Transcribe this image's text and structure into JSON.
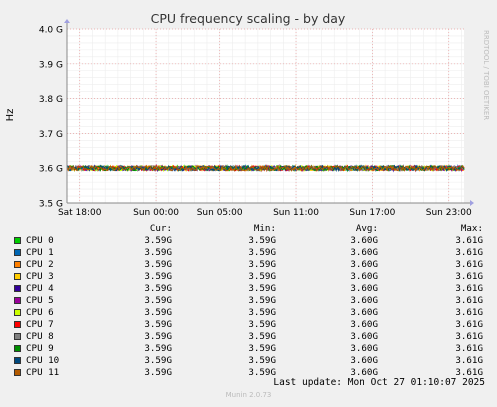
{
  "chart_data": {
    "type": "line",
    "title": "CPU frequency scaling - by day",
    "ylabel": "Hz",
    "side_label": "RRDTOOL / TOBI OETIKER",
    "y_ticks": [
      "3.5 G",
      "3.6 G",
      "3.7 G",
      "3.8 G",
      "3.9 G",
      "4.0 G"
    ],
    "y_tick_values": [
      3.5,
      3.6,
      3.7,
      3.8,
      3.9,
      4.0
    ],
    "ylim": [
      3.5,
      4.0
    ],
    "x_ticks": [
      "Sat 18:00",
      "Sun 00:00",
      "Sun 05:00",
      "Sun 11:00",
      "Sun 17:00",
      "Sun 23:00"
    ],
    "x_tick_hours": [
      1,
      7,
      12,
      18,
      24,
      30
    ],
    "xlim_hours": [
      0,
      31.2
    ],
    "grid": true,
    "series": [
      {
        "name": "CPU 0",
        "color": "#00CC00",
        "value": 3.6
      },
      {
        "name": "CPU 1",
        "color": "#0066B3",
        "value": 3.6
      },
      {
        "name": "CPU 2",
        "color": "#FF8000",
        "value": 3.6
      },
      {
        "name": "CPU 3",
        "color": "#FFCC00",
        "value": 3.6
      },
      {
        "name": "CPU 4",
        "color": "#330099",
        "value": 3.6
      },
      {
        "name": "CPU 5",
        "color": "#990099",
        "value": 3.6
      },
      {
        "name": "CPU 6",
        "color": "#CCFF00",
        "value": 3.6
      },
      {
        "name": "CPU 7",
        "color": "#FF0000",
        "value": 3.6
      },
      {
        "name": "CPU 8",
        "color": "#808080",
        "value": 3.6
      },
      {
        "name": "CPU 9",
        "color": "#008F00",
        "value": 3.6
      },
      {
        "name": "CPU 10",
        "color": "#00487D",
        "value": 3.6
      },
      {
        "name": "CPU 11",
        "color": "#B35A00",
        "value": 3.6
      }
    ]
  },
  "legend": {
    "headers": {
      "cur": "Cur:",
      "min": "Min:",
      "avg": "Avg:",
      "max": "Max:"
    },
    "rows": [
      {
        "name": "CPU 0",
        "cur": "3.59G",
        "min": "3.59G",
        "avg": "3.60G",
        "max": "3.61G"
      },
      {
        "name": "CPU 1",
        "cur": "3.59G",
        "min": "3.59G",
        "avg": "3.60G",
        "max": "3.61G"
      },
      {
        "name": "CPU 2",
        "cur": "3.59G",
        "min": "3.59G",
        "avg": "3.60G",
        "max": "3.61G"
      },
      {
        "name": "CPU 3",
        "cur": "3.59G",
        "min": "3.59G",
        "avg": "3.60G",
        "max": "3.61G"
      },
      {
        "name": "CPU 4",
        "cur": "3.59G",
        "min": "3.59G",
        "avg": "3.60G",
        "max": "3.61G"
      },
      {
        "name": "CPU 5",
        "cur": "3.59G",
        "min": "3.59G",
        "avg": "3.60G",
        "max": "3.61G"
      },
      {
        "name": "CPU 6",
        "cur": "3.59G",
        "min": "3.59G",
        "avg": "3.60G",
        "max": "3.61G"
      },
      {
        "name": "CPU 7",
        "cur": "3.59G",
        "min": "3.59G",
        "avg": "3.60G",
        "max": "3.61G"
      },
      {
        "name": "CPU 8",
        "cur": "3.59G",
        "min": "3.59G",
        "avg": "3.60G",
        "max": "3.61G"
      },
      {
        "name": "CPU 9",
        "cur": "3.59G",
        "min": "3.59G",
        "avg": "3.60G",
        "max": "3.61G"
      },
      {
        "name": "CPU 10",
        "cur": "3.59G",
        "min": "3.59G",
        "avg": "3.60G",
        "max": "3.61G"
      },
      {
        "name": "CPU 11",
        "cur": "3.59G",
        "min": "3.59G",
        "avg": "3.60G",
        "max": "3.61G"
      }
    ]
  },
  "last_update": "Last update: Mon Oct 27 01:10:07 2025",
  "footer": "Munin 2.0.73"
}
